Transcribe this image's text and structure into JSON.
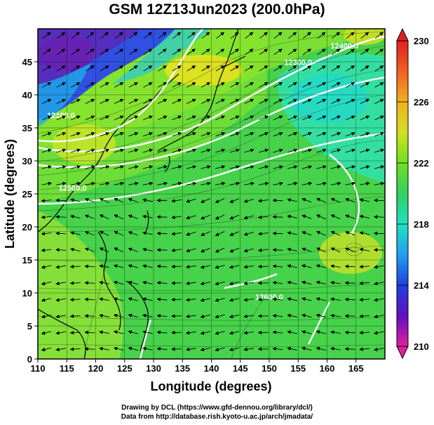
{
  "title": "GSM 12Z13Jun2023 (200.0hPa)",
  "map": {
    "xlabel": "Longitude (degrees)",
    "ylabel": "Latitude (degrees)",
    "lon_range": [
      110,
      170
    ],
    "lat_range": [
      0,
      50
    ],
    "lon_ticks": [
      110,
      115,
      120,
      125,
      130,
      135,
      140,
      145,
      150,
      155,
      160,
      165
    ],
    "lat_ticks": [
      0,
      5,
      10,
      15,
      20,
      25,
      30,
      35,
      40,
      45
    ],
    "grid": true,
    "contours": [
      {
        "label": "12100.0",
        "label_lon": 114,
        "label_lat": 36.5
      },
      {
        "label": "12500.0",
        "label_lon": 116,
        "label_lat": 25.5
      },
      {
        "label": "12400.0",
        "label_lon": 163,
        "label_lat": 47
      },
      {
        "label": "12300.0",
        "label_lon": 155,
        "label_lat": 44.5
      },
      {
        "label": "12600.0",
        "label_lon": 150,
        "label_lat": 9
      }
    ]
  },
  "colorbar": {
    "ticks": [
      230,
      226,
      222,
      218,
      214,
      210
    ],
    "range": [
      210,
      230
    ],
    "colors": [
      "#e020a0",
      "#6010c0",
      "#2040e0",
      "#20a0f0",
      "#20e0c0",
      "#30d060",
      "#70e020",
      "#d0e020",
      "#f0b020",
      "#f06020",
      "#e02020"
    ]
  },
  "credits": {
    "line1": "Drawing by DCL (https://www.gfd-dennou.org/library/dcl/)",
    "line2": "Data from http://database.rish.kyoto-u.ac.jp/arch/jmadata/"
  }
}
